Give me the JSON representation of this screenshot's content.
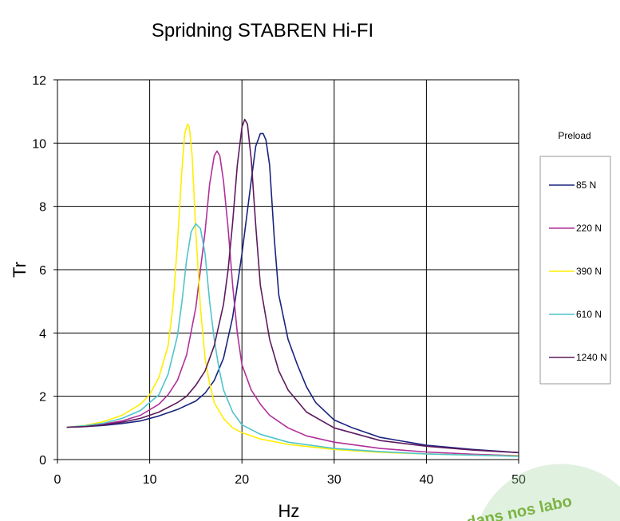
{
  "chart_data": {
    "type": "line",
    "title": "Spridning STABREN Hi-FI",
    "xlabel": "Hz",
    "ylabel": "Tr",
    "xlim": [
      0,
      50
    ],
    "ylim": [
      0,
      12
    ],
    "x_ticks": [
      "0",
      "10",
      "20",
      "30",
      "40",
      "50"
    ],
    "y_ticks": [
      "0",
      "2",
      "4",
      "6",
      "8",
      "10",
      "12"
    ],
    "grid": true,
    "legend_title": "Preload",
    "legend_position": "right",
    "series": [
      {
        "name": "85 N",
        "color": "#1a237e",
        "x": [
          1,
          3,
          5,
          7,
          9,
          11,
          13,
          15,
          16,
          17,
          18,
          19,
          20,
          21,
          21.5,
          22,
          22.3,
          22.6,
          23,
          23.5,
          24,
          25,
          26,
          27,
          28,
          30,
          32,
          35,
          40,
          45,
          50
        ],
        "y": [
          1.02,
          1.04,
          1.08,
          1.14,
          1.22,
          1.38,
          1.58,
          1.85,
          2.1,
          2.5,
          3.2,
          4.5,
          6.5,
          8.8,
          9.9,
          10.3,
          10.3,
          10.1,
          9.3,
          7.0,
          5.2,
          3.8,
          3.0,
          2.3,
          1.8,
          1.25,
          1.0,
          0.7,
          0.45,
          0.32,
          0.22
        ]
      },
      {
        "name": "220 N",
        "color": "#b0309a",
        "x": [
          1,
          3,
          5,
          7,
          9,
          11,
          12,
          13,
          14,
          15,
          16,
          16.5,
          17,
          17.3,
          17.6,
          18,
          18.5,
          19,
          19.5,
          20,
          21,
          22,
          23,
          25,
          27,
          30,
          35,
          40,
          45,
          50
        ],
        "y": [
          1.02,
          1.06,
          1.12,
          1.22,
          1.4,
          1.75,
          2.05,
          2.5,
          3.3,
          4.8,
          7.2,
          8.7,
          9.6,
          9.75,
          9.6,
          8.8,
          7.3,
          5.5,
          4.0,
          3.0,
          2.2,
          1.75,
          1.4,
          1.0,
          0.75,
          0.55,
          0.35,
          0.24,
          0.17,
          0.12
        ]
      },
      {
        "name": "390 N",
        "color": "#ffee00",
        "x": [
          1,
          3,
          5,
          7,
          9,
          10,
          11,
          12,
          12.5,
          13,
          13.5,
          13.8,
          14.1,
          14.3,
          14.6,
          15,
          15.5,
          16,
          16.5,
          17,
          18,
          19,
          20,
          22,
          25,
          30,
          35,
          40,
          45,
          50
        ],
        "y": [
          1.02,
          1.08,
          1.2,
          1.4,
          1.75,
          2.05,
          2.6,
          3.6,
          4.8,
          6.8,
          9.2,
          10.3,
          10.6,
          10.5,
          9.6,
          7.2,
          4.8,
          3.2,
          2.4,
          1.8,
          1.3,
          1.0,
          0.85,
          0.65,
          0.48,
          0.32,
          0.23,
          0.18,
          0.14,
          0.11
        ]
      },
      {
        "name": "610 N",
        "color": "#4fc4cc",
        "x": [
          1,
          3,
          5,
          7,
          9,
          11,
          12,
          13,
          13.5,
          14,
          14.5,
          15,
          15.5,
          16,
          16.5,
          17,
          17.5,
          18,
          19,
          20,
          22,
          25,
          30,
          35,
          40,
          45,
          50
        ],
        "y": [
          1.02,
          1.07,
          1.15,
          1.3,
          1.55,
          2.05,
          2.7,
          3.9,
          5.0,
          6.3,
          7.2,
          7.45,
          7.3,
          6.5,
          5.0,
          3.8,
          2.9,
          2.2,
          1.5,
          1.1,
          0.8,
          0.55,
          0.35,
          0.25,
          0.18,
          0.14,
          0.1
        ]
      },
      {
        "name": "1240 N",
        "color": "#5e1a5e",
        "x": [
          1,
          3,
          5,
          7,
          9,
          11,
          13,
          14,
          15,
          16,
          17,
          18,
          18.5,
          19,
          19.5,
          20,
          20.3,
          20.6,
          21,
          21.5,
          22,
          23,
          24,
          25,
          27,
          30,
          35,
          40,
          45,
          50
        ],
        "y": [
          1.02,
          1.04,
          1.1,
          1.18,
          1.3,
          1.5,
          1.8,
          2.0,
          2.35,
          2.8,
          3.6,
          4.9,
          6.0,
          7.5,
          9.3,
          10.5,
          10.75,
          10.6,
          9.5,
          7.4,
          5.5,
          3.8,
          2.8,
          2.2,
          1.5,
          1.0,
          0.6,
          0.42,
          0.3,
          0.22
        ]
      }
    ]
  },
  "stamp": {
    "text": "dans nos labo",
    "color": "#7cb342"
  }
}
